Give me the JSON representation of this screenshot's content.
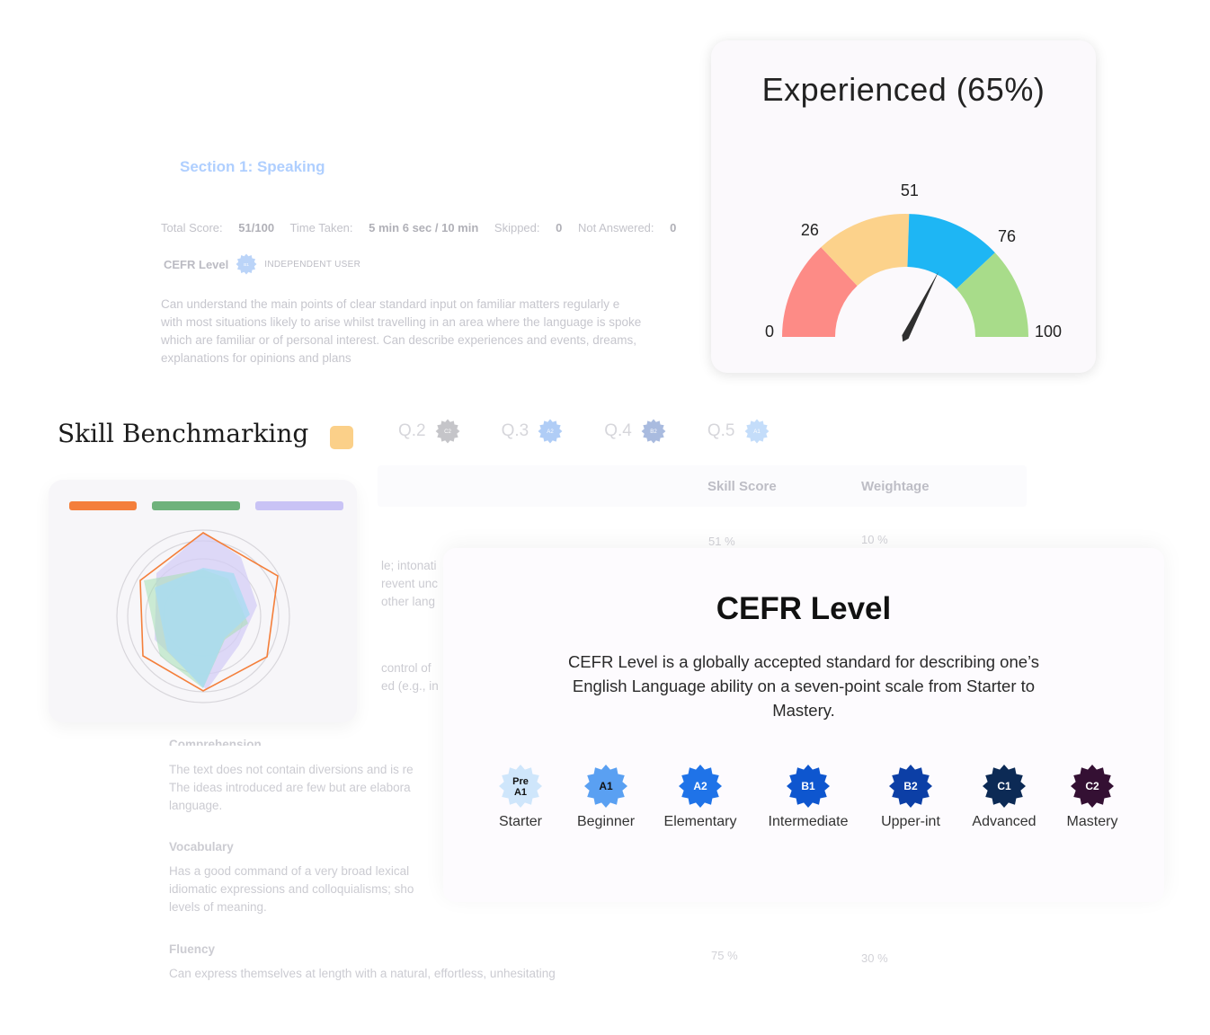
{
  "report": {
    "section_title": "Section 1:  Speaking",
    "stats": {
      "total_label": "Total Score:",
      "total_value": "51/100",
      "time_label": "Time Taken:",
      "time_value": "5 min 6 sec  / 10 min",
      "skipped_label": "Skipped:",
      "skipped_value": "0",
      "not_answered_label": "Not Answered:",
      "not_answered_value": "0"
    },
    "cefr_label": "CEFR Level",
    "cefr_badge": "B1",
    "cefr_user": "INDEPENDENT USER",
    "description_lines": [
      "Can understand the main points of clear standard input on familiar matters regularly e",
      "with most situations likely to arise whilst travelling in an area where the language is spoke",
      "which are familiar or of personal interest. Can describe experiences and events, dreams,",
      "explanations for opinions and plans"
    ]
  },
  "skill": {
    "title": "Skill Benchmarking",
    "swatch_color": "#fbd089",
    "tabs": [
      {
        "label": "Q.2",
        "badge": "C2"
      },
      {
        "label": "Q.3",
        "badge": "A2"
      },
      {
        "label": "Q.4",
        "badge": "B2"
      },
      {
        "label": "Q.5",
        "badge": "A1"
      }
    ],
    "columns": {
      "score": "Skill Score",
      "weight": "Weightage"
    },
    "row1": {
      "score": "51 %",
      "weight": "10 %"
    },
    "row_last": {
      "score": "75 %",
      "weight": "30 %"
    },
    "fragments": {
      "f1": [
        "le; intonati",
        "revent unc",
        " other lang"
      ],
      "f2": [
        "control of",
        "ed (e.g., in"
      ],
      "comprehension_heading": "Comprehension",
      "comprehension_lines": [
        "The text does not contain diversions and is re",
        "The ideas introduced are few but are elabora",
        "language."
      ],
      "vocab_heading": "Vocabulary",
      "vocab_lines": [
        "Has a good command of a very broad lexical",
        "idiomatic expressions and colloquialisms; sho",
        "levels of meaning."
      ],
      "fluency_heading": "Fluency",
      "fluency_line": "Can express themselves at length with a natural, effortless, unhesitating"
    },
    "legend_colors": [
      "#f47f3b",
      "#6fb27c",
      "#c9c3f5"
    ]
  },
  "gauge": {
    "title": "Experienced (65%)",
    "value": 65,
    "min": 0,
    "max": 100,
    "segments": [
      {
        "from": 0,
        "to": 26,
        "color": "#fd8b86"
      },
      {
        "from": 26,
        "to": 51,
        "color": "#fcd28b"
      },
      {
        "from": 51,
        "to": 76,
        "color": "#1eb6f4"
      },
      {
        "from": 76,
        "to": 100,
        "color": "#a8dc8a"
      }
    ],
    "labels": {
      "l0": "0",
      "l26": "26",
      "l51": "51",
      "l76": "76",
      "l100": "100"
    }
  },
  "cefr": {
    "title": "CEFR Level",
    "description": "CEFR Level is a globally accepted standard for describing one’s English Language ability on a seven-point scale from Starter to Mastery.",
    "levels": [
      {
        "badge": "Pre A1",
        "name": "Starter",
        "color": "#cfe6fb",
        "text_color": "#111111"
      },
      {
        "badge": "A1",
        "name": "Beginner",
        "color": "#5aa0f2",
        "text_color": "#111111"
      },
      {
        "badge": "A2",
        "name": "Elementary",
        "color": "#1f73e8",
        "text_color": "#ffffff"
      },
      {
        "badge": "B1",
        "name": "Intermediate",
        "color": "#0e56cf",
        "text_color": "#ffffff"
      },
      {
        "badge": "B2",
        "name": "Upper-int",
        "color": "#0c3fa6",
        "text_color": "#ffffff"
      },
      {
        "badge": "C1",
        "name": "Advanced",
        "color": "#0c2a55",
        "text_color": "#ffffff"
      },
      {
        "badge": "C2",
        "name": "Mastery",
        "color": "#341033",
        "text_color": "#ffffff"
      }
    ]
  }
}
